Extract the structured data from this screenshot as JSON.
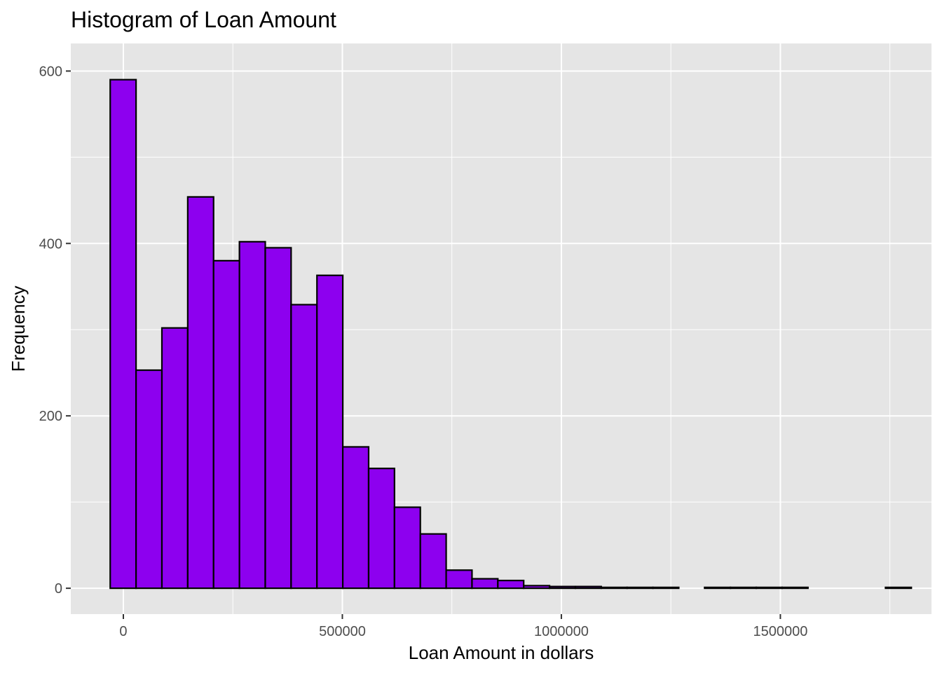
{
  "chart_data": {
    "type": "bar",
    "title": "Histogram of Loan Amount",
    "xlabel": "Loan Amount in dollars",
    "ylabel": "Frequency",
    "xlim": [
      -120000,
      1845000
    ],
    "ylim": [
      -30,
      632
    ],
    "x_ticks": [
      0,
      500000,
      1000000,
      1500000
    ],
    "x_tick_labels": [
      "0",
      "500000",
      "1000000",
      "1500000"
    ],
    "y_ticks": [
      0,
      200,
      400,
      600
    ],
    "y_tick_labels": [
      "0",
      "200",
      "400",
      "600"
    ],
    "bin_start": -30000,
    "bin_width": 59000,
    "values": [
      590,
      253,
      302,
      454,
      380,
      402,
      395,
      329,
      363,
      164,
      139,
      94,
      63,
      21,
      11,
      9,
      3,
      2,
      2,
      1,
      1,
      1,
      0,
      1,
      1,
      1,
      1,
      0,
      0,
      0,
      1
    ],
    "grid": true,
    "legend": "none",
    "colors": {
      "bar_fill": "#8d00ef",
      "bar_stroke": "#000000",
      "panel_background": "#e5e5e5",
      "grid_major": "#ffffff",
      "tick_label": "#4d4d4d"
    }
  }
}
